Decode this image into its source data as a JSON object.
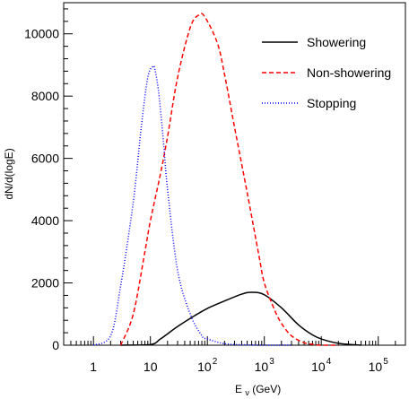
{
  "chart_data": {
    "type": "line",
    "xscale": "log",
    "xlim": [
      0.3,
      300000
    ],
    "ylim": [
      0,
      11000
    ],
    "xlabel": "E_ν (GeV)",
    "xlabel_main": "E",
    "xlabel_sub": "ν",
    "xlabel_unit": " (GeV)",
    "ylabel": "dN/d(logE)",
    "grid": false,
    "legend_position": "top-right",
    "x_ticks": [
      {
        "label": "1",
        "base": "1",
        "exp": "",
        "value": 1
      },
      {
        "label": "10",
        "base": "10",
        "exp": "",
        "value": 10
      },
      {
        "label": "10^2",
        "base": "10",
        "exp": "2",
        "value": 100
      },
      {
        "label": "10^3",
        "base": "10",
        "exp": "3",
        "value": 1000
      },
      {
        "label": "10^4",
        "base": "10",
        "exp": "4",
        "value": 10000
      },
      {
        "label": "10^5",
        "base": "10",
        "exp": "5",
        "value": 100000
      }
    ],
    "y_ticks": [
      {
        "label": "0",
        "value": 0
      },
      {
        "label": "2000",
        "value": 2000
      },
      {
        "label": "4000",
        "value": 4000
      },
      {
        "label": "6000",
        "value": 6000
      },
      {
        "label": "8000",
        "value": 8000
      },
      {
        "label": "10000",
        "value": 10000
      }
    ],
    "series": [
      {
        "name": "Showering",
        "color": "#000000",
        "dash": "solid",
        "x": [
          3,
          10,
          15,
          30,
          60,
          100,
          200,
          400,
          600,
          1000,
          2000,
          4000,
          7000,
          10000,
          20000,
          50000
        ],
        "y": [
          0,
          20,
          200,
          600,
          950,
          1180,
          1420,
          1640,
          1700,
          1620,
          1200,
          650,
          330,
          200,
          60,
          0
        ]
      },
      {
        "name": "Non-showering",
        "color": "#ff0000",
        "dash": "dashed",
        "x": [
          3,
          5,
          8,
          10,
          15,
          20,
          30,
          50,
          70,
          90,
          150,
          200,
          300,
          500,
          800,
          1000,
          1500,
          2000,
          3000,
          5000,
          7000,
          10000,
          20000
        ],
        "y": [
          0,
          1000,
          3000,
          4000,
          5500,
          6700,
          8600,
          10200,
          10600,
          10550,
          9700,
          8700,
          7000,
          4900,
          2900,
          2000,
          1150,
          700,
          300,
          80,
          30,
          0,
          0
        ]
      },
      {
        "name": "Stopping",
        "color": "#0000ff",
        "dash": "dotted",
        "x": [
          1,
          2,
          3,
          5,
          7,
          9,
          11,
          12,
          14,
          17,
          20,
          30,
          50,
          80,
          100,
          200,
          500,
          1000,
          3000
        ],
        "y": [
          0,
          300,
          1900,
          4600,
          7100,
          8600,
          8950,
          8850,
          8100,
          6500,
          5000,
          2400,
          1000,
          300,
          200,
          50,
          10,
          0,
          0
        ]
      }
    ]
  }
}
